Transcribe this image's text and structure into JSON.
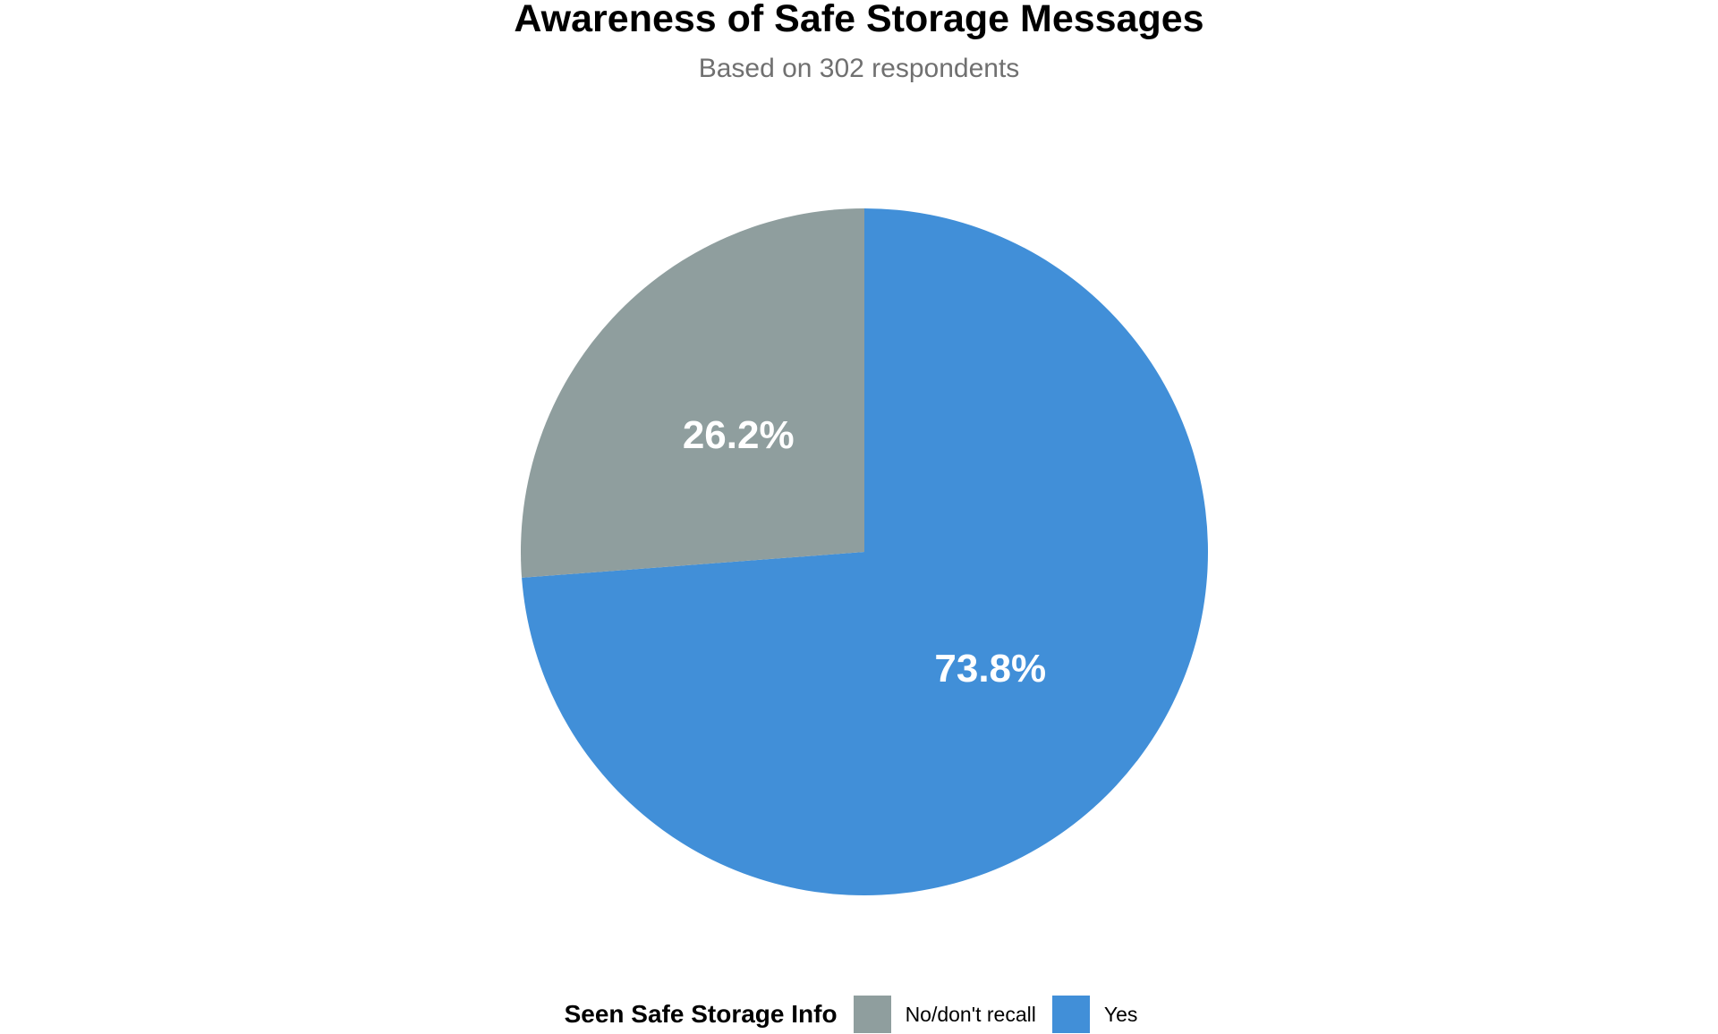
{
  "chart_data": {
    "type": "pie",
    "title": "Awareness of Safe Storage Messages",
    "subtitle": "Based on 302 respondents",
    "legend_title": "Seen Safe Storage Info",
    "legend_position": "bottom",
    "categories": [
      "No/don't recall",
      "Yes"
    ],
    "values": [
      26.2,
      73.8
    ],
    "labels": [
      "26.2%",
      "73.8%"
    ],
    "colors": [
      "#8f9e9e",
      "#418fd8"
    ]
  }
}
